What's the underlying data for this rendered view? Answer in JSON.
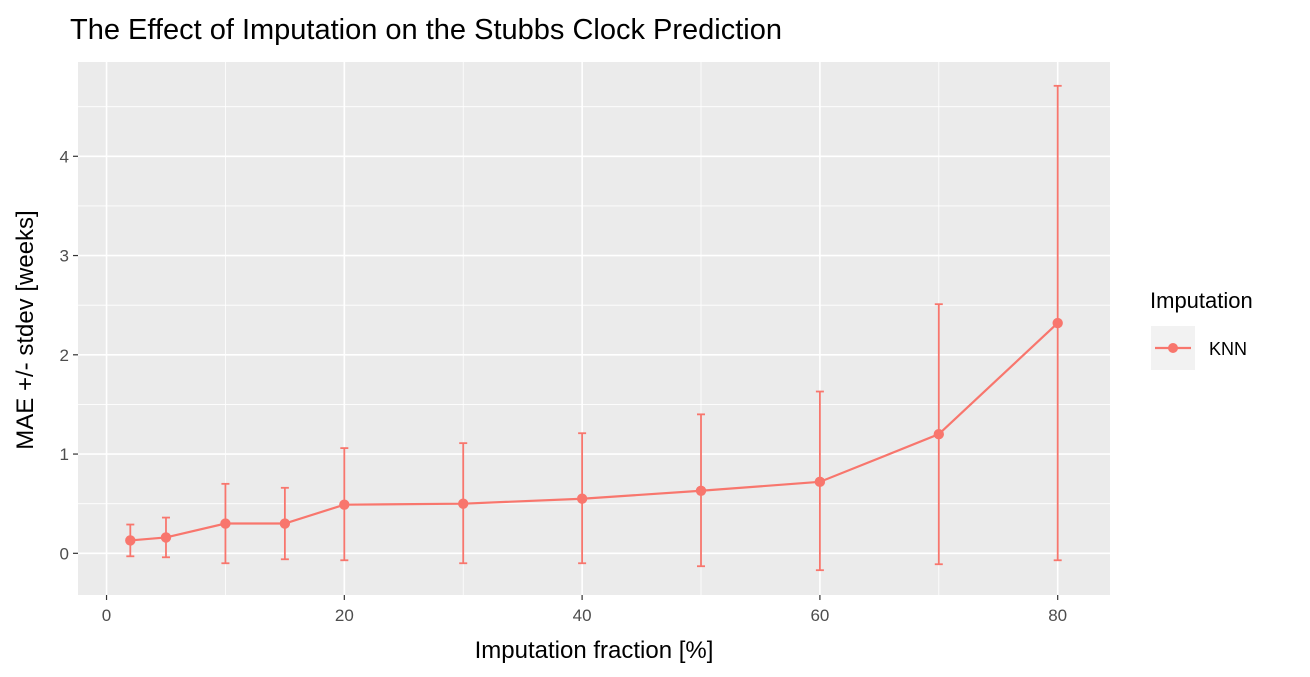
{
  "chart_data": {
    "type": "line",
    "title": "The Effect of Imputation on the Stubbs Clock Prediction",
    "xlabel": "Imputation fraction [%]",
    "ylabel": "MAE +/- stdev [weeks]",
    "xlim": [
      -2.4,
      84.4
    ],
    "ylim": [
      -0.42,
      4.95
    ],
    "x_ticks": [
      0,
      20,
      40,
      60,
      80
    ],
    "y_ticks": [
      0,
      1,
      2,
      3,
      4
    ],
    "grid": true,
    "legend": {
      "title": "Imputation",
      "position": "right"
    },
    "colors": {
      "panel_background": "#ebebeb",
      "grid_line": "#ffffff",
      "series": "#f8766d"
    },
    "series": [
      {
        "name": "KNN",
        "color": "#f8766d",
        "points": [
          {
            "x": 2,
            "y": 0.13,
            "lower": -0.03,
            "upper": 0.29
          },
          {
            "x": 5,
            "y": 0.16,
            "lower": -0.04,
            "upper": 0.36
          },
          {
            "x": 10,
            "y": 0.3,
            "lower": -0.1,
            "upper": 0.7
          },
          {
            "x": 15,
            "y": 0.3,
            "lower": -0.06,
            "upper": 0.66
          },
          {
            "x": 20,
            "y": 0.49,
            "lower": -0.07,
            "upper": 1.06
          },
          {
            "x": 30,
            "y": 0.5,
            "lower": -0.1,
            "upper": 1.11
          },
          {
            "x": 40,
            "y": 0.55,
            "lower": -0.1,
            "upper": 1.21
          },
          {
            "x": 50,
            "y": 0.63,
            "lower": -0.13,
            "upper": 1.4
          },
          {
            "x": 60,
            "y": 0.72,
            "lower": -0.17,
            "upper": 1.63
          },
          {
            "x": 70,
            "y": 1.2,
            "lower": -0.11,
            "upper": 2.51
          },
          {
            "x": 80,
            "y": 2.32,
            "lower": -0.07,
            "upper": 4.71
          }
        ]
      }
    ]
  }
}
